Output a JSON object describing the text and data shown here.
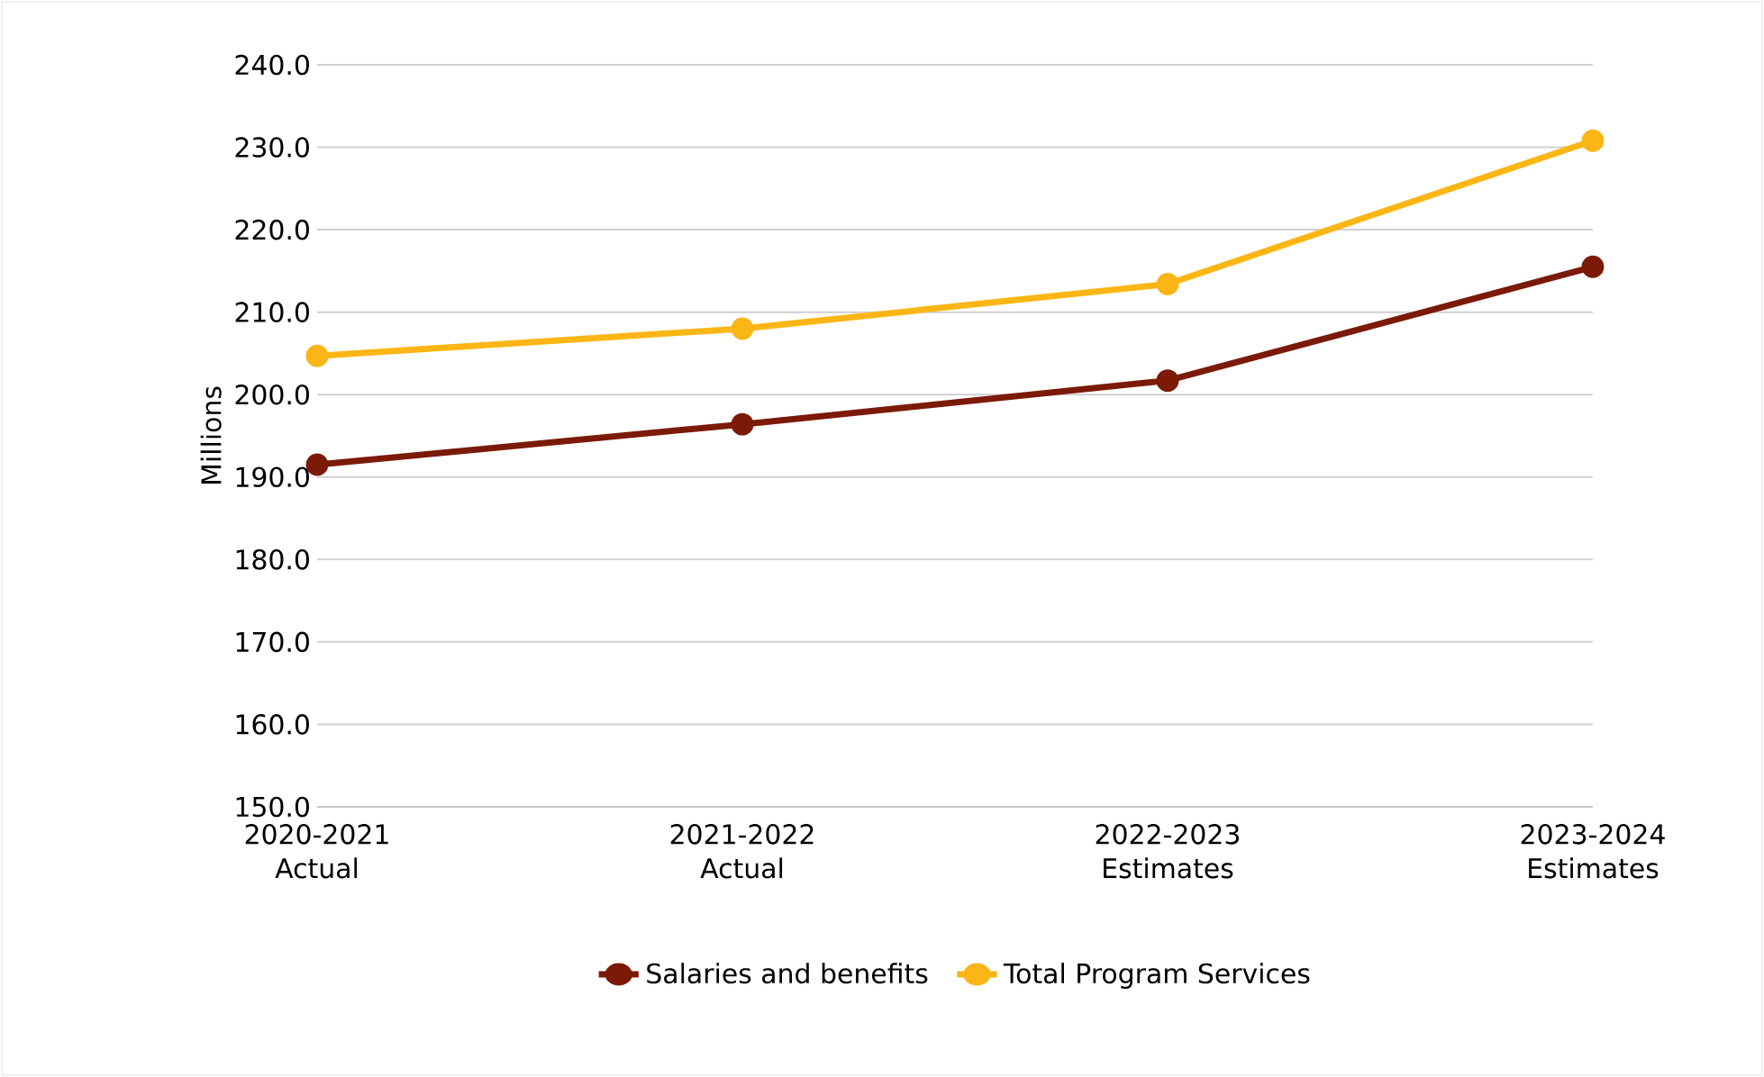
{
  "chart_data": {
    "type": "line",
    "ylabel": "Millions",
    "categories": [
      "2020-2021 Actual",
      "2021-2022 Actual",
      "2022-2023 Estimates",
      "2023-2024 Estimates"
    ],
    "series": [
      {
        "name": "Salaries and benefits",
        "color": "#7b1a07",
        "values": [
          191.5,
          196.4,
          201.7,
          215.5
        ]
      },
      {
        "name": "Total Program Services",
        "color": "#fbb615",
        "values": [
          204.7,
          208.0,
          213.4,
          230.8
        ]
      }
    ],
    "ylim": [
      150,
      240
    ],
    "yticks": [
      {
        "value": 150,
        "label": "150.0"
      },
      {
        "value": 160,
        "label": "160.0"
      },
      {
        "value": 170,
        "label": "170.0"
      },
      {
        "value": 180,
        "label": "180.0"
      },
      {
        "value": 190,
        "label": "190.0"
      },
      {
        "value": 200,
        "label": "200.0"
      },
      {
        "value": 210,
        "label": "210.0"
      },
      {
        "value": 220,
        "label": "220.0"
      },
      {
        "value": 230,
        "label": "230.0"
      },
      {
        "value": 240,
        "label": "240.0"
      }
    ],
    "grid": "y",
    "legend": "bottom",
    "marker": "circle",
    "line_style": "solid"
  }
}
